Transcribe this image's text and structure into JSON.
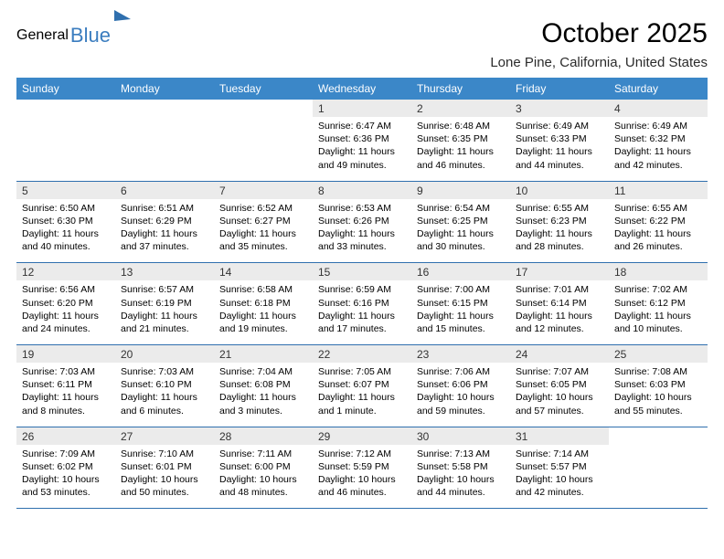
{
  "logo": {
    "part1": "General",
    "part2": "Blue"
  },
  "title": "October 2025",
  "location": "Lone Pine, California, United States",
  "colors": {
    "header_bg": "#3b87c8",
    "header_text": "#ffffff",
    "daynum_bg": "#ebebeb",
    "rule": "#2f6fae",
    "logo_gray": "#5a5a5a",
    "logo_blue": "#3b7dbf"
  },
  "day_headers": [
    "Sunday",
    "Monday",
    "Tuesday",
    "Wednesday",
    "Thursday",
    "Friday",
    "Saturday"
  ],
  "weeks": [
    [
      null,
      null,
      null,
      {
        "n": "1",
        "sr": "6:47 AM",
        "ss": "6:36 PM",
        "dl": "11 hours and 49 minutes."
      },
      {
        "n": "2",
        "sr": "6:48 AM",
        "ss": "6:35 PM",
        "dl": "11 hours and 46 minutes."
      },
      {
        "n": "3",
        "sr": "6:49 AM",
        "ss": "6:33 PM",
        "dl": "11 hours and 44 minutes."
      },
      {
        "n": "4",
        "sr": "6:49 AM",
        "ss": "6:32 PM",
        "dl": "11 hours and 42 minutes."
      }
    ],
    [
      {
        "n": "5",
        "sr": "6:50 AM",
        "ss": "6:30 PM",
        "dl": "11 hours and 40 minutes."
      },
      {
        "n": "6",
        "sr": "6:51 AM",
        "ss": "6:29 PM",
        "dl": "11 hours and 37 minutes."
      },
      {
        "n": "7",
        "sr": "6:52 AM",
        "ss": "6:27 PM",
        "dl": "11 hours and 35 minutes."
      },
      {
        "n": "8",
        "sr": "6:53 AM",
        "ss": "6:26 PM",
        "dl": "11 hours and 33 minutes."
      },
      {
        "n": "9",
        "sr": "6:54 AM",
        "ss": "6:25 PM",
        "dl": "11 hours and 30 minutes."
      },
      {
        "n": "10",
        "sr": "6:55 AM",
        "ss": "6:23 PM",
        "dl": "11 hours and 28 minutes."
      },
      {
        "n": "11",
        "sr": "6:55 AM",
        "ss": "6:22 PM",
        "dl": "11 hours and 26 minutes."
      }
    ],
    [
      {
        "n": "12",
        "sr": "6:56 AM",
        "ss": "6:20 PM",
        "dl": "11 hours and 24 minutes."
      },
      {
        "n": "13",
        "sr": "6:57 AM",
        "ss": "6:19 PM",
        "dl": "11 hours and 21 minutes."
      },
      {
        "n": "14",
        "sr": "6:58 AM",
        "ss": "6:18 PM",
        "dl": "11 hours and 19 minutes."
      },
      {
        "n": "15",
        "sr": "6:59 AM",
        "ss": "6:16 PM",
        "dl": "11 hours and 17 minutes."
      },
      {
        "n": "16",
        "sr": "7:00 AM",
        "ss": "6:15 PM",
        "dl": "11 hours and 15 minutes."
      },
      {
        "n": "17",
        "sr": "7:01 AM",
        "ss": "6:14 PM",
        "dl": "11 hours and 12 minutes."
      },
      {
        "n": "18",
        "sr": "7:02 AM",
        "ss": "6:12 PM",
        "dl": "11 hours and 10 minutes."
      }
    ],
    [
      {
        "n": "19",
        "sr": "7:03 AM",
        "ss": "6:11 PM",
        "dl": "11 hours and 8 minutes."
      },
      {
        "n": "20",
        "sr": "7:03 AM",
        "ss": "6:10 PM",
        "dl": "11 hours and 6 minutes."
      },
      {
        "n": "21",
        "sr": "7:04 AM",
        "ss": "6:08 PM",
        "dl": "11 hours and 3 minutes."
      },
      {
        "n": "22",
        "sr": "7:05 AM",
        "ss": "6:07 PM",
        "dl": "11 hours and 1 minute."
      },
      {
        "n": "23",
        "sr": "7:06 AM",
        "ss": "6:06 PM",
        "dl": "10 hours and 59 minutes."
      },
      {
        "n": "24",
        "sr": "7:07 AM",
        "ss": "6:05 PM",
        "dl": "10 hours and 57 minutes."
      },
      {
        "n": "25",
        "sr": "7:08 AM",
        "ss": "6:03 PM",
        "dl": "10 hours and 55 minutes."
      }
    ],
    [
      {
        "n": "26",
        "sr": "7:09 AM",
        "ss": "6:02 PM",
        "dl": "10 hours and 53 minutes."
      },
      {
        "n": "27",
        "sr": "7:10 AM",
        "ss": "6:01 PM",
        "dl": "10 hours and 50 minutes."
      },
      {
        "n": "28",
        "sr": "7:11 AM",
        "ss": "6:00 PM",
        "dl": "10 hours and 48 minutes."
      },
      {
        "n": "29",
        "sr": "7:12 AM",
        "ss": "5:59 PM",
        "dl": "10 hours and 46 minutes."
      },
      {
        "n": "30",
        "sr": "7:13 AM",
        "ss": "5:58 PM",
        "dl": "10 hours and 44 minutes."
      },
      {
        "n": "31",
        "sr": "7:14 AM",
        "ss": "5:57 PM",
        "dl": "10 hours and 42 minutes."
      },
      null
    ]
  ],
  "labels": {
    "sunrise": "Sunrise:",
    "sunset": "Sunset:",
    "daylight": "Daylight:"
  }
}
